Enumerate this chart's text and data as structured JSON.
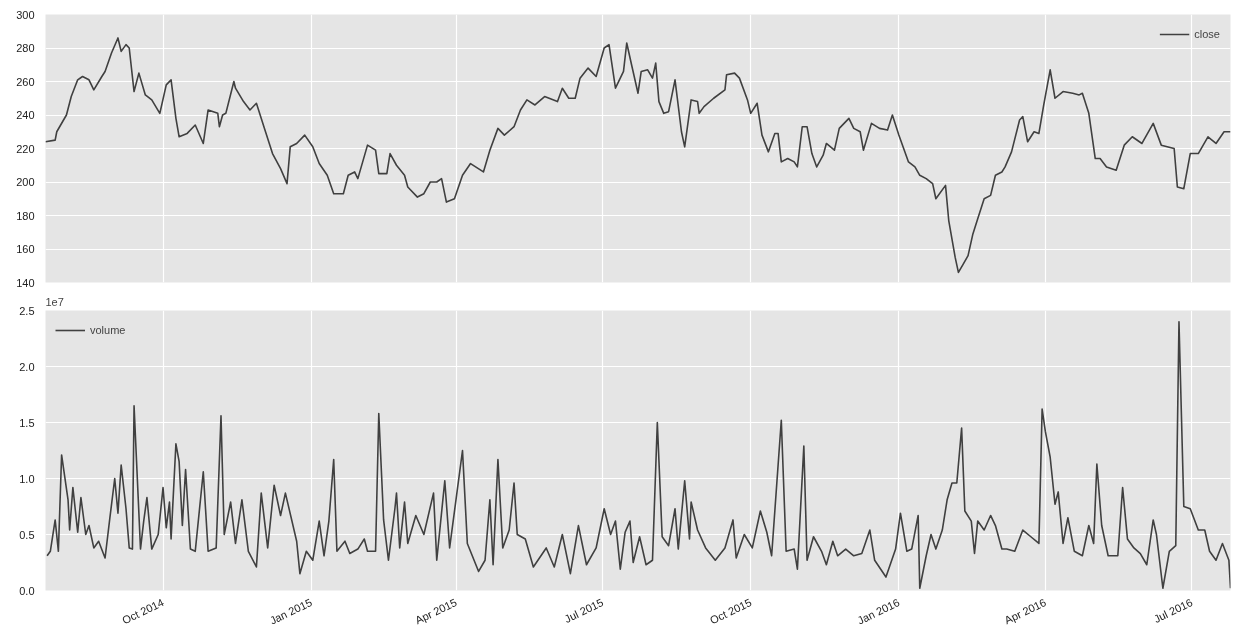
{
  "chart_data": [
    {
      "type": "line",
      "xlim": [
        "2014-07-20",
        "2016-07-25"
      ],
      "ylim": [
        140,
        300
      ],
      "yticks": [
        140,
        160,
        180,
        200,
        220,
        240,
        260,
        280,
        300
      ],
      "xticks": [
        {
          "value": "2014-10-01",
          "label": null
        },
        {
          "value": "2015-01-01",
          "label": null
        },
        {
          "value": "2015-04-01",
          "label": null
        },
        {
          "value": "2015-07-01",
          "label": null
        },
        {
          "value": "2015-10-01",
          "label": null
        },
        {
          "value": "2016-01-01",
          "label": null
        },
        {
          "value": "2016-04-01",
          "label": null
        },
        {
          "value": "2016-07-01",
          "label": null
        }
      ],
      "tick_labels": "y",
      "grid": true,
      "legend": "top right",
      "series": [
        {
          "name": "close",
          "color": "#404040",
          "x": [
            "2014-07-20",
            "2014-07-26",
            "2014-07-27",
            "2014-08-02",
            "2014-08-05",
            "2014-08-09",
            "2014-08-12",
            "2014-08-16",
            "2014-08-19",
            "2014-08-24",
            "2014-08-26",
            "2014-08-30",
            "2014-09-03",
            "2014-09-05",
            "2014-09-08",
            "2014-09-10",
            "2014-09-13",
            "2014-09-16",
            "2014-09-20",
            "2014-09-24",
            "2014-09-29",
            "2014-10-03",
            "2014-10-06",
            "2014-10-09",
            "2014-10-11",
            "2014-10-16",
            "2014-10-21",
            "2014-10-26",
            "2014-10-29",
            "2014-11-04",
            "2014-11-05",
            "2014-11-07",
            "2014-11-09",
            "2014-11-14",
            "2014-11-15",
            "2014-11-20",
            "2014-11-24",
            "2014-11-28",
            "2014-12-03",
            "2014-12-08",
            "2014-12-13",
            "2014-12-17",
            "2014-12-19",
            "2014-12-23",
            "2014-12-28",
            "2015-01-02",
            "2015-01-06",
            "2015-01-11",
            "2015-01-15",
            "2015-01-21",
            "2015-01-24",
            "2015-01-28",
            "2015-01-30",
            "2015-02-05",
            "2015-02-10",
            "2015-02-12",
            "2015-02-17",
            "2015-02-19",
            "2015-02-23",
            "2015-02-28",
            "2015-03-02",
            "2015-03-08",
            "2015-03-12",
            "2015-03-16",
            "2015-03-20",
            "2015-03-23",
            "2015-03-26",
            "2015-03-31",
            "2015-04-05",
            "2015-04-10",
            "2015-04-18",
            "2015-04-22",
            "2015-04-27",
            "2015-05-01",
            "2015-05-07",
            "2015-05-11",
            "2015-05-15",
            "2015-05-20",
            "2015-05-26",
            "2015-06-03",
            "2015-06-06",
            "2015-06-10",
            "2015-06-14",
            "2015-06-17",
            "2015-06-22",
            "2015-06-27",
            "2015-07-02",
            "2015-07-05",
            "2015-07-09",
            "2015-07-14",
            "2015-07-16",
            "2015-07-19",
            "2015-07-23",
            "2015-07-25",
            "2015-07-29",
            "2015-08-01",
            "2015-08-03",
            "2015-08-05",
            "2015-08-08",
            "2015-08-11",
            "2015-08-15",
            "2015-08-19",
            "2015-08-21",
            "2015-08-25",
            "2015-08-29",
            "2015-08-30",
            "2015-09-02",
            "2015-09-08",
            "2015-09-15",
            "2015-09-16",
            "2015-09-21",
            "2015-09-24",
            "2015-09-29",
            "2015-10-01",
            "2015-10-05",
            "2015-10-08",
            "2015-10-12",
            "2015-10-16",
            "2015-10-18",
            "2015-10-20",
            "2015-10-24",
            "2015-10-28",
            "2015-10-30",
            "2015-11-02",
            "2015-11-05",
            "2015-11-08",
            "2015-11-11",
            "2015-11-15",
            "2015-11-17",
            "2015-11-22",
            "2015-11-25",
            "2015-12-01",
            "2015-12-04",
            "2015-12-08",
            "2015-12-10",
            "2015-12-15",
            "2015-12-20",
            "2015-12-25",
            "2015-12-28",
            "2016-01-01",
            "2016-01-07",
            "2016-01-11",
            "2016-01-14",
            "2016-01-18",
            "2016-01-22",
            "2016-01-24",
            "2016-01-30",
            "2016-02-01",
            "2016-02-05",
            "2016-02-07",
            "2016-02-10",
            "2016-02-13",
            "2016-02-16",
            "2016-02-19",
            "2016-02-23",
            "2016-02-27",
            "2016-03-01",
            "2016-03-05",
            "2016-03-07",
            "2016-03-11",
            "2016-03-16",
            "2016-03-18",
            "2016-03-21",
            "2016-03-25",
            "2016-03-28",
            "2016-03-31",
            "2016-04-04",
            "2016-04-07",
            "2016-04-12",
            "2016-04-18",
            "2016-04-22",
            "2016-04-24",
            "2016-04-28",
            "2016-05-02",
            "2016-05-05",
            "2016-05-09",
            "2016-05-15",
            "2016-05-20",
            "2016-05-25",
            "2016-05-31",
            "2016-06-07",
            "2016-06-12",
            "2016-06-20",
            "2016-06-22",
            "2016-06-26",
            "2016-06-30",
            "2016-07-05",
            "2016-07-11",
            "2016-07-16",
            "2016-07-21",
            "2016-07-25"
          ],
          "values": [
            224,
            225,
            230,
            240,
            251,
            261,
            263,
            261,
            255,
            263,
            266,
            277,
            286,
            278,
            282,
            280,
            254,
            265,
            252,
            249,
            241,
            258,
            261,
            238,
            227,
            229,
            234,
            223,
            243,
            241,
            233,
            240,
            241,
            260,
            256,
            248,
            243,
            247,
            232,
            217,
            208,
            199,
            221,
            223,
            228,
            221,
            211,
            204,
            193,
            193,
            204,
            206,
            202,
            222,
            219,
            205,
            205,
            217,
            210,
            204,
            197,
            191,
            193,
            200,
            200,
            202,
            188,
            190,
            204,
            211,
            206,
            219,
            232,
            228,
            233,
            243,
            249,
            246,
            251,
            248,
            256,
            250,
            250,
            262,
            268,
            263,
            280,
            282,
            256,
            266,
            283,
            270,
            253,
            266,
            267,
            262,
            271,
            248,
            241,
            242,
            261,
            230,
            221,
            249,
            248,
            241,
            245,
            250,
            255,
            264,
            265,
            262,
            249,
            241,
            247,
            228,
            218,
            229,
            229,
            212,
            214,
            212,
            209,
            233,
            233,
            217,
            209,
            216,
            223,
            219,
            232,
            238,
            232,
            230,
            219,
            235,
            232,
            231,
            240,
            228,
            212,
            209,
            204,
            202,
            199,
            190,
            198,
            177,
            155,
            146,
            151,
            156,
            169,
            178,
            190,
            192,
            204,
            206,
            209,
            218,
            237,
            239,
            224,
            230,
            229,
            246,
            267,
            250,
            254,
            253,
            252,
            253,
            241,
            214,
            214,
            209,
            207,
            222,
            227,
            223,
            235,
            222,
            220,
            197,
            196,
            217,
            217,
            227,
            223,
            230,
            230
          ]
        }
      ]
    },
    {
      "type": "line",
      "xlim": [
        "2014-07-20",
        "2016-07-25"
      ],
      "ylim": [
        0,
        2.5
      ],
      "yticks": [
        {
          "value": 0,
          "label": "0.0"
        },
        0.5,
        {
          "value": 1,
          "label": "1.0"
        },
        1.5,
        {
          "value": 2,
          "label": "2.0"
        },
        2.5
      ],
      "xticks": [
        {
          "value": "2014-10-01",
          "label": "Oct 2014"
        },
        {
          "value": "2015-01-01",
          "label": "Jan 2015"
        },
        {
          "value": "2015-04-01",
          "label": "Apr 2015"
        },
        {
          "value": "2015-07-01",
          "label": "Jul 2015"
        },
        {
          "value": "2015-10-01",
          "label": "Oct 2015"
        },
        {
          "value": "2016-01-01",
          "label": "Jan 2016"
        },
        {
          "value": "2016-04-01",
          "label": "Apr 2016"
        },
        {
          "value": "2016-07-01",
          "label": "Jul 2016"
        }
      ],
      "grid": true,
      "legend": "top left",
      "annotations": [
        "1e7"
      ],
      "series": [
        {
          "name": "volume",
          "color": "#404040",
          "x": [
            "2014-07-21",
            "2014-07-23",
            "2014-07-26",
            "2014-07-28",
            "2014-07-30",
            "2014-08-03",
            "2014-08-04",
            "2014-08-06",
            "2014-08-09",
            "2014-08-11",
            "2014-08-14",
            "2014-08-16",
            "2014-08-19",
            "2014-08-22",
            "2014-08-26",
            "2014-08-29",
            "2014-09-01",
            "2014-09-03",
            "2014-09-05",
            "2014-09-08",
            "2014-09-10",
            "2014-09-12",
            "2014-09-13",
            "2014-09-17",
            "2014-09-19",
            "2014-09-21",
            "2014-09-24",
            "2014-09-28",
            "2014-10-01",
            "2014-10-03",
            "2014-10-05",
            "2014-10-06",
            "2014-10-09",
            "2014-10-11",
            "2014-10-13",
            "2014-10-15",
            "2014-10-18",
            "2014-10-21",
            "2014-10-26",
            "2014-10-29",
            "2014-11-03",
            "2014-11-06",
            "2014-11-08",
            "2014-11-12",
            "2014-11-15",
            "2014-11-19",
            "2014-11-23",
            "2014-11-28",
            "2014-12-01",
            "2014-12-05",
            "2014-12-09",
            "2014-12-13",
            "2014-12-16",
            "2014-12-23",
            "2014-12-25",
            "2014-12-29",
            "2015-01-02",
            "2015-01-06",
            "2015-01-09",
            "2015-01-12",
            "2015-01-15",
            "2015-01-17",
            "2015-01-22",
            "2015-01-25",
            "2015-01-30",
            "2015-02-03",
            "2015-02-05",
            "2015-02-10",
            "2015-02-12",
            "2015-02-15",
            "2015-02-18",
            "2015-02-22",
            "2015-02-23",
            "2015-02-25",
            "2015-02-28",
            "2015-03-02",
            "2015-03-07",
            "2015-03-12",
            "2015-03-18",
            "2015-03-20",
            "2015-03-25",
            "2015-03-28",
            "2015-04-05",
            "2015-04-08",
            "2015-04-15",
            "2015-04-19",
            "2015-04-22",
            "2015-04-24",
            "2015-04-27",
            "2015-04-30",
            "2015-05-04",
            "2015-05-07",
            "2015-05-09",
            "2015-05-14",
            "2015-05-19",
            "2015-05-27",
            "2015-06-01",
            "2015-06-06",
            "2015-06-11",
            "2015-06-16",
            "2015-06-21",
            "2015-06-27",
            "2015-07-02",
            "2015-07-06",
            "2015-07-09",
            "2015-07-12",
            "2015-07-15",
            "2015-07-18",
            "2015-07-20",
            "2015-07-24",
            "2015-07-28",
            "2015-08-01",
            "2015-08-04",
            "2015-08-07",
            "2015-08-11",
            "2015-08-15",
            "2015-08-17",
            "2015-08-21",
            "2015-08-24",
            "2015-08-25",
            "2015-08-29",
            "2015-09-03",
            "2015-09-09",
            "2015-09-15",
            "2015-09-20",
            "2015-09-22",
            "2015-09-27",
            "2015-10-02",
            "2015-10-07",
            "2015-10-11",
            "2015-10-14",
            "2015-10-20",
            "2015-10-23",
            "2015-10-28",
            "2015-10-30",
            "2015-11-03",
            "2015-11-05",
            "2015-11-09",
            "2015-11-14",
            "2015-11-17",
            "2015-11-21",
            "2015-11-24",
            "2015-11-29",
            "2015-12-04",
            "2015-12-09",
            "2015-12-14",
            "2015-12-17",
            "2015-12-24",
            "2015-12-30",
            "2016-01-02",
            "2016-01-06",
            "2016-01-09",
            "2016-01-13",
            "2016-01-14",
            "2016-01-18",
            "2016-01-21",
            "2016-01-24",
            "2016-01-28",
            "2016-01-31",
            "2016-02-03",
            "2016-02-06",
            "2016-02-09",
            "2016-02-11",
            "2016-02-15",
            "2016-02-17",
            "2016-02-19",
            "2016-02-23",
            "2016-02-27",
            "2016-03-01",
            "2016-03-05",
            "2016-03-08",
            "2016-03-13",
            "2016-03-18",
            "2016-03-23",
            "2016-03-28",
            "2016-03-30",
            "2016-04-01",
            "2016-04-04",
            "2016-04-07",
            "2016-04-09",
            "2016-04-12",
            "2016-04-15",
            "2016-04-19",
            "2016-04-24",
            "2016-04-28",
            "2016-05-01",
            "2016-05-03",
            "2016-05-06",
            "2016-05-10",
            "2016-05-16",
            "2016-05-19",
            "2016-05-22",
            "2016-05-26",
            "2016-05-30",
            "2016-06-03",
            "2016-06-07",
            "2016-06-09",
            "2016-06-13",
            "2016-06-17",
            "2016-06-21",
            "2016-06-23",
            "2016-06-26",
            "2016-06-30",
            "2016-07-05",
            "2016-07-09",
            "2016-07-12",
            "2016-07-16",
            "2016-07-20",
            "2016-07-24",
            "2016-07-25"
          ],
          "values": [
            0.31,
            0.35,
            0.63,
            0.35,
            1.21,
            0.81,
            0.54,
            0.92,
            0.52,
            0.83,
            0.5,
            0.58,
            0.38,
            0.44,
            0.29,
            0.65,
            1.0,
            0.69,
            1.12,
            0.73,
            0.38,
            0.37,
            1.65,
            0.37,
            0.62,
            0.83,
            0.37,
            0.5,
            0.92,
            0.56,
            0.79,
            0.46,
            1.31,
            1.15,
            0.58,
            1.08,
            0.37,
            0.35,
            1.06,
            0.35,
            0.38,
            1.56,
            0.5,
            0.79,
            0.42,
            0.81,
            0.35,
            0.21,
            0.87,
            0.38,
            0.94,
            0.67,
            0.87,
            0.44,
            0.15,
            0.35,
            0.27,
            0.62,
            0.31,
            0.62,
            1.17,
            0.35,
            0.44,
            0.33,
            0.37,
            0.46,
            0.35,
            0.35,
            1.58,
            0.63,
            0.27,
            0.73,
            0.87,
            0.38,
            0.79,
            0.42,
            0.67,
            0.5,
            0.87,
            0.27,
            0.98,
            0.38,
            1.25,
            0.42,
            0.17,
            0.27,
            0.81,
            0.23,
            1.17,
            0.38,
            0.54,
            0.96,
            0.5,
            0.46,
            0.21,
            0.38,
            0.21,
            0.5,
            0.15,
            0.58,
            0.23,
            0.38,
            0.73,
            0.5,
            0.62,
            0.19,
            0.52,
            0.62,
            0.25,
            0.48,
            0.23,
            0.27,
            1.5,
            0.48,
            0.4,
            0.73,
            0.37,
            0.98,
            0.46,
            0.79,
            0.54,
            0.38,
            0.27,
            0.38,
            0.63,
            0.29,
            0.5,
            0.38,
            0.71,
            0.52,
            0.31,
            1.52,
            0.35,
            0.37,
            0.19,
            1.29,
            0.27,
            0.48,
            0.35,
            0.23,
            0.44,
            0.31,
            0.37,
            0.31,
            0.33,
            0.54,
            0.27,
            0.12,
            0.37,
            0.69,
            0.35,
            0.37,
            0.67,
            0.02,
            0.31,
            0.5,
            0.37,
            0.54,
            0.81,
            0.96,
            0.96,
            1.45,
            0.71,
            0.62,
            0.33,
            0.62,
            0.54,
            0.67,
            0.58,
            0.37,
            0.37,
            0.35,
            0.54,
            0.48,
            0.42,
            1.62,
            1.42,
            1.19,
            0.77,
            0.88,
            0.42,
            0.65,
            0.35,
            0.31,
            0.58,
            0.42,
            1.13,
            0.58,
            0.31,
            0.31,
            0.92,
            0.46,
            0.38,
            0.33,
            0.23,
            0.63,
            0.5,
            0.02,
            0.35,
            0.4,
            2.4,
            0.75,
            0.73,
            0.54,
            0.54,
            0.35,
            0.27,
            0.42,
            0.27,
            0.02
          ]
        }
      ]
    }
  ]
}
